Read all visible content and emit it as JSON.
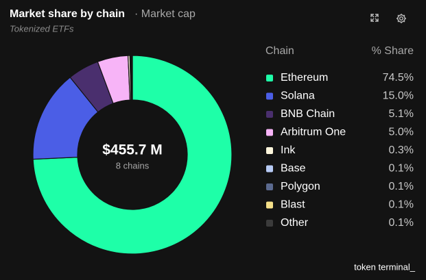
{
  "chart_data": {
    "type": "pie",
    "title": "Market share by chain",
    "subtitle": "· Market cap",
    "caption": "Tokenized ETFs",
    "center_label": "$455.7 M",
    "center_sublabel": "8 chains",
    "legend_header": [
      "Chain",
      "% Share"
    ],
    "categories": [
      "Ethereum",
      "Solana",
      "BNB Chain",
      "Arbitrum One",
      "Ink",
      "Base",
      "Polygon",
      "Blast",
      "Other"
    ],
    "values": [
      74.5,
      15.0,
      5.1,
      5.0,
      0.3,
      0.1,
      0.1,
      0.1,
      0.1
    ],
    "value_labels": [
      "74.5%",
      "15.0%",
      "5.1%",
      "5.0%",
      "0.3%",
      "0.1%",
      "0.1%",
      "0.1%",
      "0.1%"
    ],
    "colors": [
      "#1effa8",
      "#4b5ee6",
      "#4a2f6e",
      "#f7b4f7",
      "#fdf6dc",
      "#b7cbf5",
      "#5b6a8f",
      "#f4df88",
      "#3b3b3b"
    ],
    "hole": true
  },
  "footer": {
    "brand": "token terminal_"
  }
}
